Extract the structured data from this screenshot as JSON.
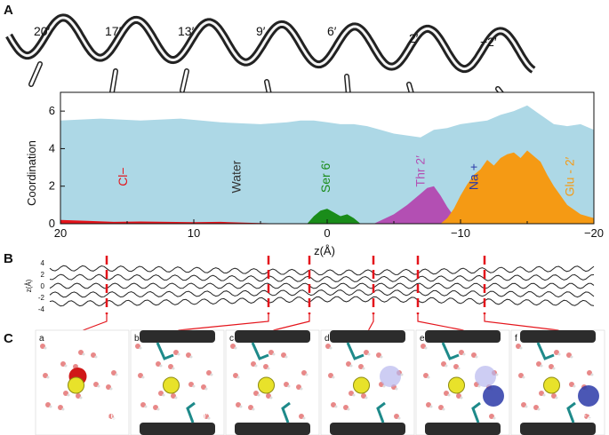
{
  "panels": {
    "a": "A",
    "b": "B",
    "c": "C"
  },
  "helix_labels": [
    "20′",
    "17′",
    "13′",
    "9′",
    "6′",
    "2′",
    "−2′"
  ],
  "colors": {
    "water": "#add8e6",
    "cl": "#e4141b",
    "ser": "#1a8c1a",
    "thr": "#b34fb3",
    "na": "#2b3aa8",
    "glu": "#f59a14",
    "red_marker": "#e4141b"
  },
  "chart_data": {
    "type": "area",
    "xlabel": "z(Å)",
    "ylabel": "Coordination",
    "xlim": [
      20,
      -20
    ],
    "ylim": [
      0,
      7
    ],
    "xticks": [
      20,
      10,
      0,
      -10,
      -20
    ],
    "yticks": [
      0,
      2,
      4,
      6
    ],
    "grid": false,
    "legend": "inline labels",
    "series": [
      {
        "name": "Water",
        "color_key": "water",
        "x": [
          20,
          17,
          14,
          11,
          8,
          5,
          3,
          2,
          1,
          0,
          -1,
          -2,
          -3,
          -4,
          -5,
          -6,
          -7,
          -8,
          -9,
          -10,
          -11,
          -12,
          -13,
          -14,
          -15,
          -16,
          -17,
          -18,
          -19,
          -20
        ],
        "values": [
          5.5,
          5.6,
          5.5,
          5.6,
          5.4,
          5.3,
          5.4,
          5.5,
          5.5,
          5.4,
          5.3,
          5.3,
          5.2,
          5.0,
          4.8,
          4.7,
          4.6,
          5.0,
          5.1,
          5.3,
          5.4,
          5.5,
          5.8,
          6.0,
          6.3,
          5.8,
          5.3,
          5.2,
          5.3,
          5.0
        ]
      },
      {
        "name": "Cl−",
        "color_key": "cl",
        "x": [
          20,
          18,
          16,
          14,
          12,
          10,
          8,
          6,
          4,
          2,
          0,
          -2,
          -4,
          -6,
          -8,
          -10,
          -12,
          -14,
          -15,
          -16,
          -17,
          -18,
          -19,
          -20
        ],
        "values": [
          0.2,
          0.15,
          0.1,
          0.12,
          0.1,
          0.08,
          0.1,
          0.05,
          0.02,
          0.0,
          0.0,
          0.0,
          0.0,
          0.0,
          0.0,
          0.0,
          0.05,
          0.1,
          0.15,
          0.25,
          0.35,
          0.5,
          0.45,
          0.3
        ]
      },
      {
        "name": "Ser 6′",
        "color_key": "ser",
        "x": [
          1.5,
          1.0,
          0.5,
          0.0,
          -0.5,
          -1.0,
          -1.5,
          -2.0,
          -2.5
        ],
        "values": [
          0.0,
          0.4,
          0.7,
          0.8,
          0.6,
          0.4,
          0.5,
          0.3,
          0.0
        ]
      },
      {
        "name": "Thr 2′",
        "color_key": "thr",
        "x": [
          -3.5,
          -5,
          -6,
          -7,
          -7.5,
          -8,
          -8.5,
          -9,
          -9.5,
          -10
        ],
        "values": [
          0.0,
          0.5,
          1.0,
          1.6,
          1.9,
          2.0,
          1.5,
          0.9,
          0.4,
          0.0
        ]
      },
      {
        "name": "Na +",
        "color_key": "na",
        "x": [
          -8,
          -9,
          -10,
          -11,
          -12,
          -13,
          -14,
          -15,
          -16,
          -17,
          -18,
          -19,
          -20
        ],
        "values": [
          0.0,
          0.05,
          0.15,
          0.25,
          0.3,
          0.35,
          0.4,
          0.45,
          0.4,
          0.3,
          0.2,
          0.1,
          0.05
        ]
      },
      {
        "name": "Glu - 2′",
        "color_key": "glu",
        "x": [
          -8.5,
          -9,
          -9.5,
          -10,
          -10.5,
          -11,
          -11.5,
          -12,
          -12.5,
          -13,
          -13.5,
          -14,
          -14.5,
          -15,
          -15.5,
          -16,
          -16.5,
          -17,
          -17.5,
          -18,
          -19,
          -20
        ],
        "values": [
          0.0,
          0.3,
          0.8,
          1.5,
          2.1,
          2.6,
          2.9,
          3.4,
          3.1,
          3.5,
          3.7,
          3.8,
          3.5,
          3.9,
          3.6,
          3.3,
          2.6,
          2.0,
          1.5,
          1.0,
          0.5,
          0.3
        ]
      }
    ]
  },
  "panel_b": {
    "ylabel": "z(Å)",
    "yticks": [
      "4",
      "2",
      "0",
      "-2",
      "-4"
    ]
  },
  "panel_c": {
    "subpanels": [
      {
        "letter": "a",
        "labels": [
          "16′"
        ]
      },
      {
        "letter": "b",
        "labels": [
          "9′"
        ]
      },
      {
        "letter": "c",
        "labels": [
          "9′",
          "6′"
        ]
      },
      {
        "letter": "d",
        "labels": [
          "6′",
          "2′"
        ]
      },
      {
        "letter": "e",
        "labels": [
          "6′",
          "2′"
        ]
      },
      {
        "letter": "f",
        "labels": [
          "−2′"
        ]
      }
    ]
  }
}
